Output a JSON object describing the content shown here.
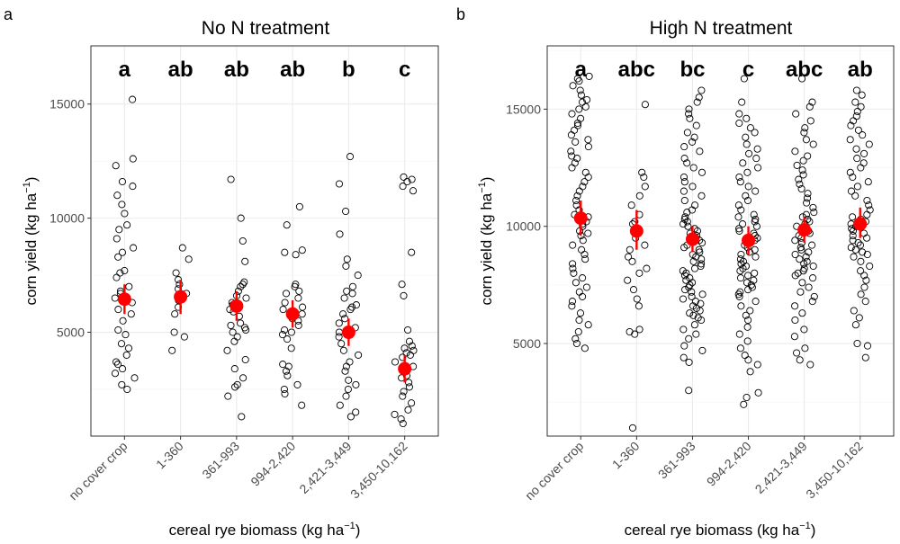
{
  "figure": {
    "x_axis_title": "cereal rye biomass (kg ha",
    "x_axis_title_sup": "−1",
    "x_axis_title_end": ")"
  },
  "colors": {
    "points": "#000000",
    "mean": "#ff0000",
    "frame": "#333333",
    "grid": "#ebebeb"
  },
  "chart_data": [
    {
      "type": "scatter",
      "panel_tag": "a",
      "title": "No N treatment",
      "ylabel": "corn yield (kg ha",
      "ylabel_sup": "−1",
      "ylabel_end": ")",
      "ylim": [
        450,
        17550
      ],
      "yticks": [
        5000,
        10000,
        15000
      ],
      "categories": [
        "no cover crop",
        "1-360",
        "361-993",
        "994-2,420",
        "2,421-3,449",
        "3,450-10,162"
      ],
      "letters": [
        "a",
        "ab",
        "ab",
        "ab",
        "b",
        "c"
      ],
      "means": [
        6450,
        6550,
        6150,
        5800,
        5000,
        3400
      ],
      "ci": [
        [
          5800,
          7100
        ],
        [
          5800,
          7300
        ],
        [
          5500,
          6800
        ],
        [
          5200,
          6400
        ],
        [
          4400,
          5600
        ],
        [
          2800,
          4000
        ]
      ],
      "points": [
        [
          15200,
          12600,
          12300,
          11600,
          11400,
          11000,
          10600,
          10200,
          9700,
          9500,
          9100,
          8700,
          8500,
          8300,
          7700,
          7600,
          7400,
          7000,
          6800,
          6700,
          6500,
          6300,
          6000,
          5800,
          5500,
          5100,
          4900,
          4500,
          4300,
          4000,
          3700,
          3600,
          3400,
          3200,
          3000,
          2700,
          2500
        ],
        [
          8700,
          8200,
          7600,
          7300,
          7100,
          6900,
          6700,
          6400,
          6100,
          5800,
          5000,
          4800,
          4200
        ],
        [
          11700,
          10000,
          9000,
          8100,
          7200,
          7100,
          7000,
          6800,
          6600,
          6500,
          6300,
          6200,
          6000,
          5900,
          5700,
          5400,
          5300,
          5200,
          5100,
          5000,
          4800,
          4600,
          4200,
          3800,
          3400,
          3000,
          2700,
          2600,
          2200,
          1300
        ],
        [
          10500,
          9700,
          8600,
          8500,
          8400,
          7100,
          7000,
          6800,
          6700,
          6500,
          6300,
          6100,
          6000,
          5800,
          5600,
          5500,
          5300,
          5100,
          5000,
          4900,
          4700,
          4300,
          3600,
          3500,
          3300,
          3100,
          2700,
          2500,
          2300,
          1800
        ],
        [
          12700,
          11500,
          10300,
          9300,
          8200,
          7900,
          7500,
          7000,
          6800,
          6700,
          6500,
          6200,
          6100,
          6000,
          5800,
          5600,
          5400,
          5200,
          5000,
          4800,
          4500,
          4200,
          4000,
          3700,
          3500,
          3300,
          2900,
          2700,
          2500,
          2200,
          1800,
          1500,
          1300
        ],
        [
          11800,
          11700,
          11600,
          11400,
          11200,
          8500,
          7100,
          6600,
          5100,
          4600,
          4400,
          4300,
          4200,
          4100,
          4000,
          3900,
          3700,
          3500,
          3300,
          3100,
          3000,
          2800,
          2600,
          2400,
          2200,
          1900,
          1600,
          1400,
          1200,
          1000
        ]
      ]
    },
    {
      "type": "scatter",
      "panel_tag": "b",
      "title": "High N treatment",
      "ylabel": "corn yield (kg ha",
      "ylabel_sup": "−1",
      "ylabel_end": ")",
      "ylim": [
        1050,
        17700
      ],
      "yticks": [
        5000,
        10000,
        15000
      ],
      "categories": [
        "no cover crop",
        "1-360",
        "361-993",
        "994-2,420",
        "2,421-3,449",
        "3,450-10,162"
      ],
      "letters": [
        "a",
        "abc",
        "bc",
        "c",
        "abc",
        "ab"
      ],
      "means": [
        10350,
        9800,
        9450,
        9400,
        9850,
        10100
      ],
      "ci": [
        [
          9600,
          11100
        ],
        [
          9000,
          10700
        ],
        [
          8900,
          10000
        ],
        [
          8800,
          10000
        ],
        [
          9300,
          10400
        ],
        [
          9500,
          10800
        ]
      ],
      "points": [
        [
          16400,
          16300,
          16200,
          16000,
          15800,
          15600,
          15400,
          15300,
          15100,
          15000,
          14800,
          14600,
          14400,
          14300,
          14100,
          13900,
          13700,
          13600,
          13400,
          13200,
          13000,
          12900,
          12700,
          12500,
          12300,
          12100,
          11900,
          11700,
          11500,
          11300,
          11100,
          10900,
          10700,
          10500,
          10400,
          10300,
          10200,
          10100,
          10000,
          9800,
          9700,
          9600,
          9400,
          9200,
          9000,
          8800,
          8600,
          8400,
          8200,
          8000,
          7800,
          7600,
          7400,
          7200,
          7000,
          6800,
          6600,
          6300,
          6000,
          5800,
          5500,
          5200,
          5000,
          4800
        ],
        [
          15200,
          12300,
          12100,
          11700,
          11300,
          10900,
          10500,
          10200,
          10100,
          9900,
          9700,
          9500,
          9200,
          9000,
          8700,
          8500,
          8200,
          8000,
          7700,
          7300,
          6900,
          6600,
          5600,
          5500,
          5400,
          1400
        ],
        [
          15800,
          15500,
          15300,
          15000,
          14800,
          14600,
          14300,
          14000,
          13800,
          13600,
          13400,
          13200,
          12900,
          12700,
          12500,
          12300,
          12100,
          11900,
          11700,
          11500,
          11300,
          11100,
          10900,
          10700,
          10600,
          10400,
          10300,
          10200,
          10100,
          10000,
          9900,
          9800,
          9700,
          9600,
          9500,
          9400,
          9300,
          9200,
          9100,
          9000,
          8900,
          8800,
          8700,
          8600,
          8500,
          8400,
          8300,
          8200,
          8100,
          8000,
          7900,
          7800,
          7700,
          7600,
          7500,
          7400,
          7300,
          7200,
          7100,
          7000,
          6900,
          6800,
          6700,
          6600,
          6500,
          6400,
          6300,
          6200,
          6100,
          6000,
          5800,
          5600,
          5400,
          5200,
          4900,
          4700,
          4400,
          4200,
          3000
        ],
        [
          16300,
          15300,
          14800,
          14600,
          14400,
          14200,
          14000,
          13800,
          13500,
          13300,
          13100,
          12900,
          12700,
          12500,
          12300,
          12100,
          11900,
          11700,
          11500,
          11300,
          11100,
          10900,
          10700,
          10500,
          10400,
          10300,
          10200,
          10100,
          10000,
          9900,
          9800,
          9700,
          9600,
          9500,
          9400,
          9300,
          9200,
          9100,
          9000,
          8900,
          8800,
          8700,
          8600,
          8500,
          8400,
          8300,
          8200,
          8100,
          8000,
          7900,
          7800,
          7700,
          7600,
          7500,
          7400,
          7300,
          7200,
          7100,
          7000,
          6800,
          6600,
          6400,
          6200,
          6000,
          5700,
          5400,
          5100,
          4800,
          4500,
          4300,
          4100,
          3800,
          2900,
          2700,
          2400
        ],
        [
          16300,
          15300,
          15100,
          14800,
          14500,
          14200,
          14000,
          13700,
          13500,
          13200,
          13000,
          12800,
          12600,
          12400,
          12200,
          12000,
          11800,
          11600,
          11400,
          11200,
          11000,
          10800,
          10600,
          10500,
          10400,
          10300,
          10200,
          10100,
          10000,
          9900,
          9800,
          9700,
          9600,
          9500,
          9400,
          9300,
          9200,
          9100,
          9000,
          8900,
          8800,
          8700,
          8600,
          8500,
          8400,
          8300,
          8200,
          8100,
          8000,
          7900,
          7800,
          7600,
          7400,
          7200,
          7000,
          6800,
          6600,
          6300,
          6000,
          5600,
          5300,
          4800,
          4600,
          4300,
          4100
        ],
        [
          15800,
          15600,
          15300,
          15100,
          14900,
          14700,
          14500,
          14300,
          14100,
          13900,
          13700,
          13500,
          13300,
          13100,
          12900,
          12700,
          12500,
          12300,
          12100,
          11900,
          11700,
          11500,
          11300,
          11100,
          10900,
          10700,
          10500,
          10400,
          10300,
          10200,
          10100,
          10000,
          9900,
          9800,
          9700,
          9600,
          9500,
          9400,
          9300,
          9200,
          9100,
          9000,
          8900,
          8800,
          8700,
          8500,
          8300,
          8100,
          7900,
          7700,
          7400,
          7100,
          6800,
          6400,
          6100,
          5800,
          5000,
          4900,
          4400
        ]
      ]
    }
  ]
}
